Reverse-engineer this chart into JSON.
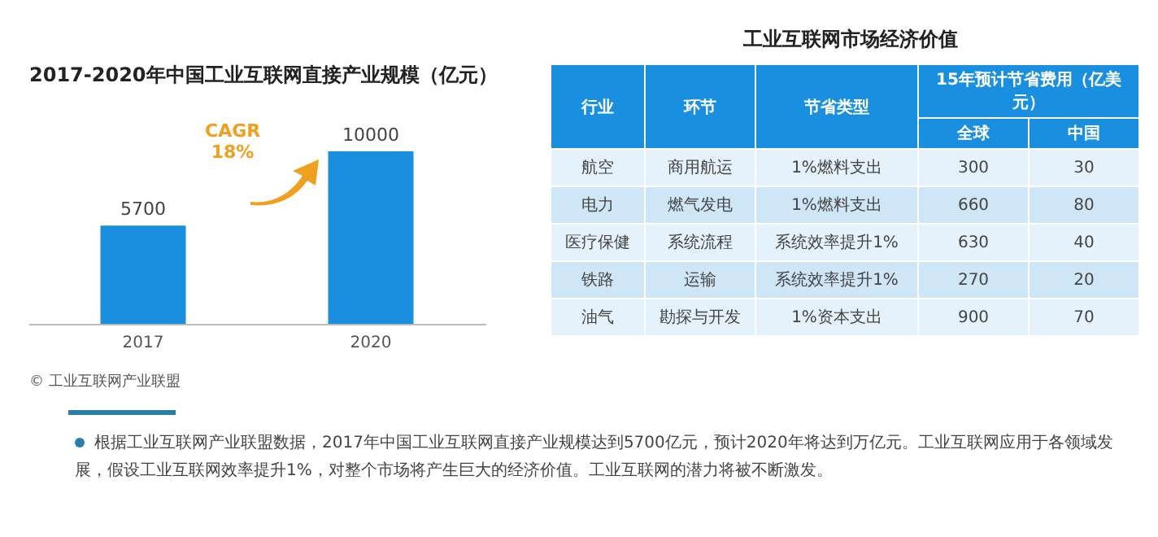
{
  "chart_data": [
    {
      "type": "bar",
      "title": "2017-2020年中国工业互联网直接产业规模（亿元）",
      "categories": [
        "2017",
        "2020"
      ],
      "values": [
        5700,
        10000
      ],
      "color": "#1a8fe0",
      "data_labels": true,
      "grid": false,
      "legend": false,
      "annotations": [
        "CAGR\n18%",
        "© 工业互联网产业联盟",
        "根据工业互联网产业联盟数据，2017年中国工业互联网直接产业规模达到5700亿元，预计2020年将达到万亿元。工业互联网应用于各领域发展，假设工业互联网效率提升1%，对整个市场将产生巨大的经济价值。工业互联网的潜力将被不断激发。"
      ]
    },
    {
      "type": "other",
      "title": "工业互联网市场经济价值",
      "categories": [
        "航空",
        "电力",
        "医疗保健",
        "铁路",
        "油气"
      ],
      "series": [
        {
          "name": "全球",
          "colors": [
            "#e6f2fb",
            "#cfe6f7",
            "#e6f2fb",
            "#cfe6f7",
            "#e6f2fb"
          ],
          "values": [
            300,
            660,
            630,
            270,
            900
          ]
        },
        {
          "name": "中国",
          "colors": [
            "#e6f2fb",
            "#cfe6f7",
            "#e6f2fb",
            "#cfe6f7",
            "#e6f2fb"
          ],
          "values": [
            30,
            80,
            40,
            20,
            70
          ]
        }
      ],
      "data_labels": true,
      "annotations": [
        "行业",
        "环节",
        "节省类型",
        "15年预计节省费用（亿美元）",
        "商用航运",
        "燃气发电",
        "系统流程",
        "运输",
        "勘探与开发",
        "1%燃料支出",
        "1%燃料支出",
        "系统效率提升1%",
        "系统效率提升1%",
        "1%资本支出"
      ]
    }
  ]
}
